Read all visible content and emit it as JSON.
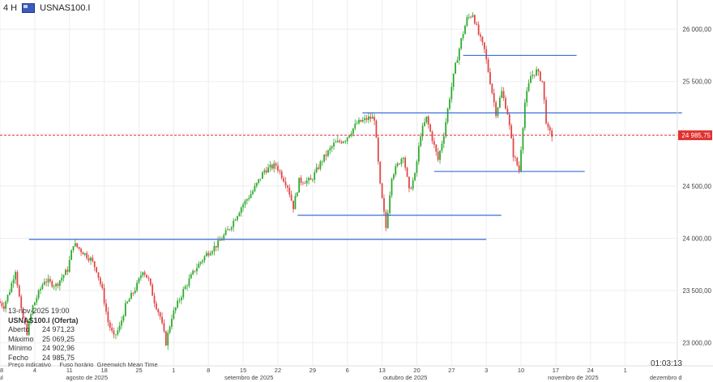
{
  "header": {
    "timeframe": "4 H",
    "symbol": "USNAS100.I",
    "flag_icon": "us-flag-icon"
  },
  "info": {
    "date": "13-nov-2025 19:00",
    "title": "USNAS100.I (Oferta)",
    "rows": [
      {
        "k": "Aberto",
        "v": "24 971,23"
      },
      {
        "k": "Máximo",
        "v": "25 069,25"
      },
      {
        "k": "Mínimo",
        "v": "24 902,96"
      },
      {
        "k": "Fecho",
        "v": "24 985,75"
      }
    ],
    "footer": "Preço indicativo     Fuso horário  Greenwich Mean Time"
  },
  "clock": "01:03:13",
  "colors": {
    "up": "#2eaa2e",
    "down": "#e04848",
    "line": "#3a6fd8",
    "price": "#e03030",
    "grid": "#eeeeee"
  },
  "chart_data": {
    "type": "candlestick",
    "ylim": [
      22780,
      26280
    ],
    "yticks": [
      {
        "v": 23000,
        "label": "23 000,00"
      },
      {
        "v": 23500,
        "label": "23 500,00"
      },
      {
        "v": 24000,
        "label": "24 000,00"
      },
      {
        "v": 24500,
        "label": "24 500,00"
      },
      {
        "v": 25000,
        "label": "25 000,00"
      },
      {
        "v": 25500,
        "label": "25 500,00"
      },
      {
        "v": 26000,
        "label": "26 000,00"
      }
    ],
    "xticks": [
      {
        "t": 0,
        "label": "28"
      },
      {
        "t": 3,
        "label": "4"
      },
      {
        "t": 6,
        "label": "11"
      },
      {
        "t": 9,
        "label": "18"
      },
      {
        "t": 12,
        "label": "25"
      },
      {
        "t": 15,
        "label": "1"
      },
      {
        "t": 18,
        "label": "8"
      },
      {
        "t": 21,
        "label": "15"
      },
      {
        "t": 24,
        "label": "22"
      },
      {
        "t": 27,
        "label": "29"
      },
      {
        "t": 30,
        "label": "6"
      },
      {
        "t": 33,
        "label": "13"
      },
      {
        "t": 36,
        "label": "20"
      },
      {
        "t": 39,
        "label": "27"
      },
      {
        "t": 42,
        "label": "3"
      },
      {
        "t": 45,
        "label": "10"
      },
      {
        "t": 48,
        "label": "17"
      },
      {
        "t": 51,
        "label": "24"
      },
      {
        "t": 54,
        "label": "1"
      }
    ],
    "months": [
      {
        "t": 0,
        "label": "jul"
      },
      {
        "t": 7.5,
        "label": "agosto de 2025"
      },
      {
        "t": 21.5,
        "label": "setembro de 2025"
      },
      {
        "t": 35,
        "label": "outubro de 2025"
      },
      {
        "t": 49.5,
        "label": "novembro de 2025"
      },
      {
        "t": 57.5,
        "label": "dezembro d"
      }
    ],
    "trend": [
      [
        0,
        23400
      ],
      [
        0.5,
        23350
      ],
      [
        1,
        23500
      ],
      [
        1.5,
        23700
      ],
      [
        2,
        23300
      ],
      [
        2.5,
        23100
      ],
      [
        3,
        23350
      ],
      [
        4,
        23600
      ],
      [
        5,
        23550
      ],
      [
        6,
        23700
      ],
      [
        6.5,
        23950
      ],
      [
        7,
        23900
      ],
      [
        8,
        23800
      ],
      [
        8.5,
        23700
      ],
      [
        9,
        23500
      ],
      [
        9.5,
        23200
      ],
      [
        10,
        23050
      ],
      [
        10.5,
        23150
      ],
      [
        11,
        23350
      ],
      [
        12,
        23550
      ],
      [
        12.5,
        23700
      ],
      [
        13,
        23600
      ],
      [
        13.5,
        23400
      ],
      [
        14,
        23250
      ],
      [
        14.5,
        23000
      ],
      [
        15,
        23250
      ],
      [
        16,
        23500
      ],
      [
        17,
        23700
      ],
      [
        18,
        23850
      ],
      [
        19,
        23950
      ],
      [
        20,
        24100
      ],
      [
        21,
        24300
      ],
      [
        22,
        24450
      ],
      [
        23,
        24650
      ],
      [
        24,
        24700
      ],
      [
        25,
        24500
      ],
      [
        25.5,
        24300
      ],
      [
        26,
        24550
      ],
      [
        27,
        24550
      ],
      [
        28,
        24750
      ],
      [
        29,
        24900
      ],
      [
        30,
        24950
      ],
      [
        31,
        25100
      ],
      [
        32,
        25150
      ],
      [
        32.5,
        25150
      ],
      [
        33,
        24500
      ],
      [
        33.5,
        24100
      ],
      [
        34,
        24600
      ],
      [
        35,
        24800
      ],
      [
        35.5,
        24450
      ],
      [
        36,
        24600
      ],
      [
        36.5,
        25000
      ],
      [
        37,
        25150
      ],
      [
        37.5,
        24950
      ],
      [
        38,
        24750
      ],
      [
        38.5,
        25000
      ],
      [
        39,
        25350
      ],
      [
        39.5,
        25650
      ],
      [
        40,
        25900
      ],
      [
        40.5,
        26100
      ],
      [
        41,
        26150
      ],
      [
        41.5,
        25950
      ],
      [
        42,
        25800
      ],
      [
        42.5,
        25500
      ],
      [
        43,
        25200
      ],
      [
        43.5,
        25400
      ],
      [
        44,
        25200
      ],
      [
        44.5,
        24800
      ],
      [
        45,
        24650
      ],
      [
        45.5,
        25300
      ],
      [
        46,
        25550
      ],
      [
        46.5,
        25600
      ],
      [
        47,
        25500
      ],
      [
        47.4,
        25050
      ],
      [
        47.8,
        24985.75
      ]
    ],
    "levels": [
      {
        "y": 23990,
        "x0": 2.5,
        "x1": 42
      },
      {
        "y": 24220,
        "x0": 25.7,
        "x1": 43.3
      },
      {
        "y": 24640,
        "x0": 37.5,
        "x1": 50.5
      },
      {
        "y": 25200,
        "x0": 31.3,
        "x1": 58.9
      },
      {
        "y": 25750,
        "x0": 40,
        "x1": 49.8
      }
    ],
    "current_price": {
      "v": 24985.75,
      "label": "24 985,75"
    }
  }
}
